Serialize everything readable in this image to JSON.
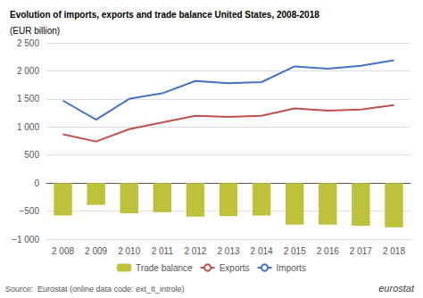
{
  "chart_data": {
    "type": "bar",
    "title": "Evolution of imports, exports and trade balance United States, 2008-2018",
    "subtitle": "(EUR billion)",
    "annotations": [
      "Source:  Eurostat (online data code: ext_It_introle)",
      "eurostat"
    ],
    "categories": [
      "2 008",
      "2 009",
      "2 010",
      "2 011",
      "2 012",
      "2 013",
      "2 014",
      "2 015",
      "2 016",
      "2 017",
      "2 018"
    ],
    "series": [
      {
        "name": "Trade balance",
        "type": "bar",
        "color": "#bec13a",
        "values": [
          -580,
          -390,
          -540,
          -520,
          -600,
          -590,
          -580,
          -740,
          -740,
          -760,
          -790
        ]
      },
      {
        "name": "Exports",
        "type": "line",
        "color": "#c0504d",
        "values": [
          870,
          740,
          960,
          1080,
          1200,
          1180,
          1200,
          1330,
          1290,
          1310,
          1390
        ]
      },
      {
        "name": "Imports",
        "type": "line",
        "color": "#4472c4",
        "values": [
          1470,
          1130,
          1500,
          1600,
          1820,
          1780,
          1800,
          2080,
          2040,
          2090,
          2190
        ]
      }
    ],
    "ylim": [
      -1000,
      2500
    ],
    "yticks": [
      {
        "value": -1000,
        "label": "−1 000"
      },
      {
        "value": -500,
        "label": "−500"
      },
      0,
      500,
      {
        "value": 1000,
        "label": "1 000"
      },
      {
        "value": 1500,
        "label": "1 500"
      },
      {
        "value": 2000,
        "label": "2 000"
      },
      {
        "value": 2500,
        "label": "2 500"
      }
    ],
    "grid": true,
    "legend": "bottom"
  }
}
